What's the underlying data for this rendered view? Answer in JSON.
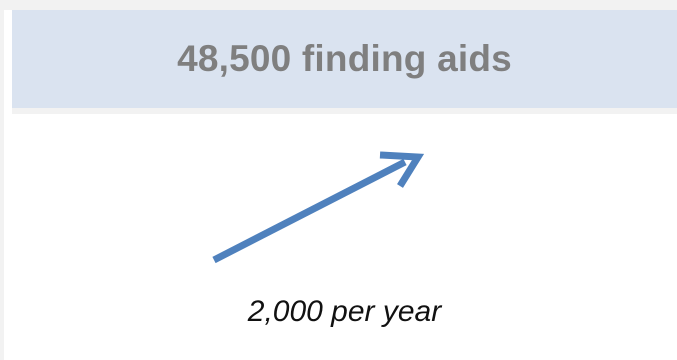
{
  "card": {
    "title": "48,500 finding aids",
    "rate_label": "2,000 per year"
  },
  "icons": {
    "trend": "trend-up-arrow-icon"
  },
  "colors": {
    "header_background": "#dae3f0",
    "title_text": "#7f7f7f",
    "arrow": "#4f81bd"
  }
}
